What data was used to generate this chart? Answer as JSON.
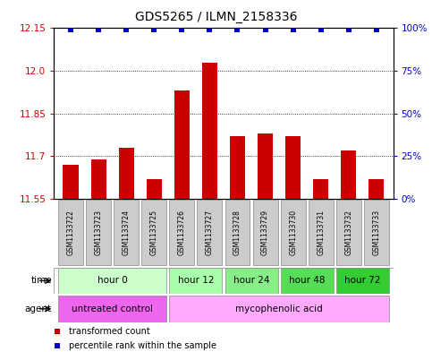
{
  "title": "GDS5265 / ILMN_2158336",
  "samples": [
    "GSM1133722",
    "GSM1133723",
    "GSM1133724",
    "GSM1133725",
    "GSM1133726",
    "GSM1133727",
    "GSM1133728",
    "GSM1133729",
    "GSM1133730",
    "GSM1133731",
    "GSM1133732",
    "GSM1133733"
  ],
  "bar_values": [
    11.67,
    11.69,
    11.73,
    11.62,
    11.93,
    12.03,
    11.77,
    11.78,
    11.77,
    11.62,
    11.72,
    11.62
  ],
  "percentile_values": [
    99,
    99,
    99,
    99,
    99,
    99,
    99,
    99,
    99,
    99,
    99,
    99
  ],
  "bar_color": "#cc0000",
  "percentile_color": "#0000cc",
  "ylim_left": [
    11.55,
    12.15
  ],
  "ylim_right": [
    0,
    100
  ],
  "yticks_left": [
    11.55,
    11.7,
    11.85,
    12.0,
    12.15
  ],
  "yticks_right": [
    0,
    25,
    50,
    75,
    100
  ],
  "ytick_labels_right": [
    "0%",
    "25%",
    "50%",
    "75%",
    "100%"
  ],
  "dotted_lines": [
    11.7,
    11.85,
    12.0
  ],
  "time_groups": [
    {
      "label": "hour 0",
      "start": 0,
      "end": 3,
      "color": "#ccffcc"
    },
    {
      "label": "hour 12",
      "start": 4,
      "end": 5,
      "color": "#aaffaa"
    },
    {
      "label": "hour 24",
      "start": 6,
      "end": 7,
      "color": "#88ee88"
    },
    {
      "label": "hour 48",
      "start": 8,
      "end": 9,
      "color": "#55dd55"
    },
    {
      "label": "hour 72",
      "start": 10,
      "end": 11,
      "color": "#33cc33"
    }
  ],
  "agent_groups": [
    {
      "label": "untreated control",
      "start": 0,
      "end": 3,
      "color": "#ee66ee"
    },
    {
      "label": "mycophenolic acid",
      "start": 4,
      "end": 11,
      "color": "#ffaaff"
    }
  ],
  "legend_items": [
    {
      "label": "transformed count",
      "color": "#cc0000"
    },
    {
      "label": "percentile rank within the sample",
      "color": "#0000cc"
    }
  ],
  "bar_width": 0.55,
  "bar_baseline": 11.55,
  "title_fontsize": 10,
  "tick_fontsize": 7.5,
  "sample_fontsize": 5.5,
  "row_fontsize": 7.5,
  "legend_fontsize": 7
}
